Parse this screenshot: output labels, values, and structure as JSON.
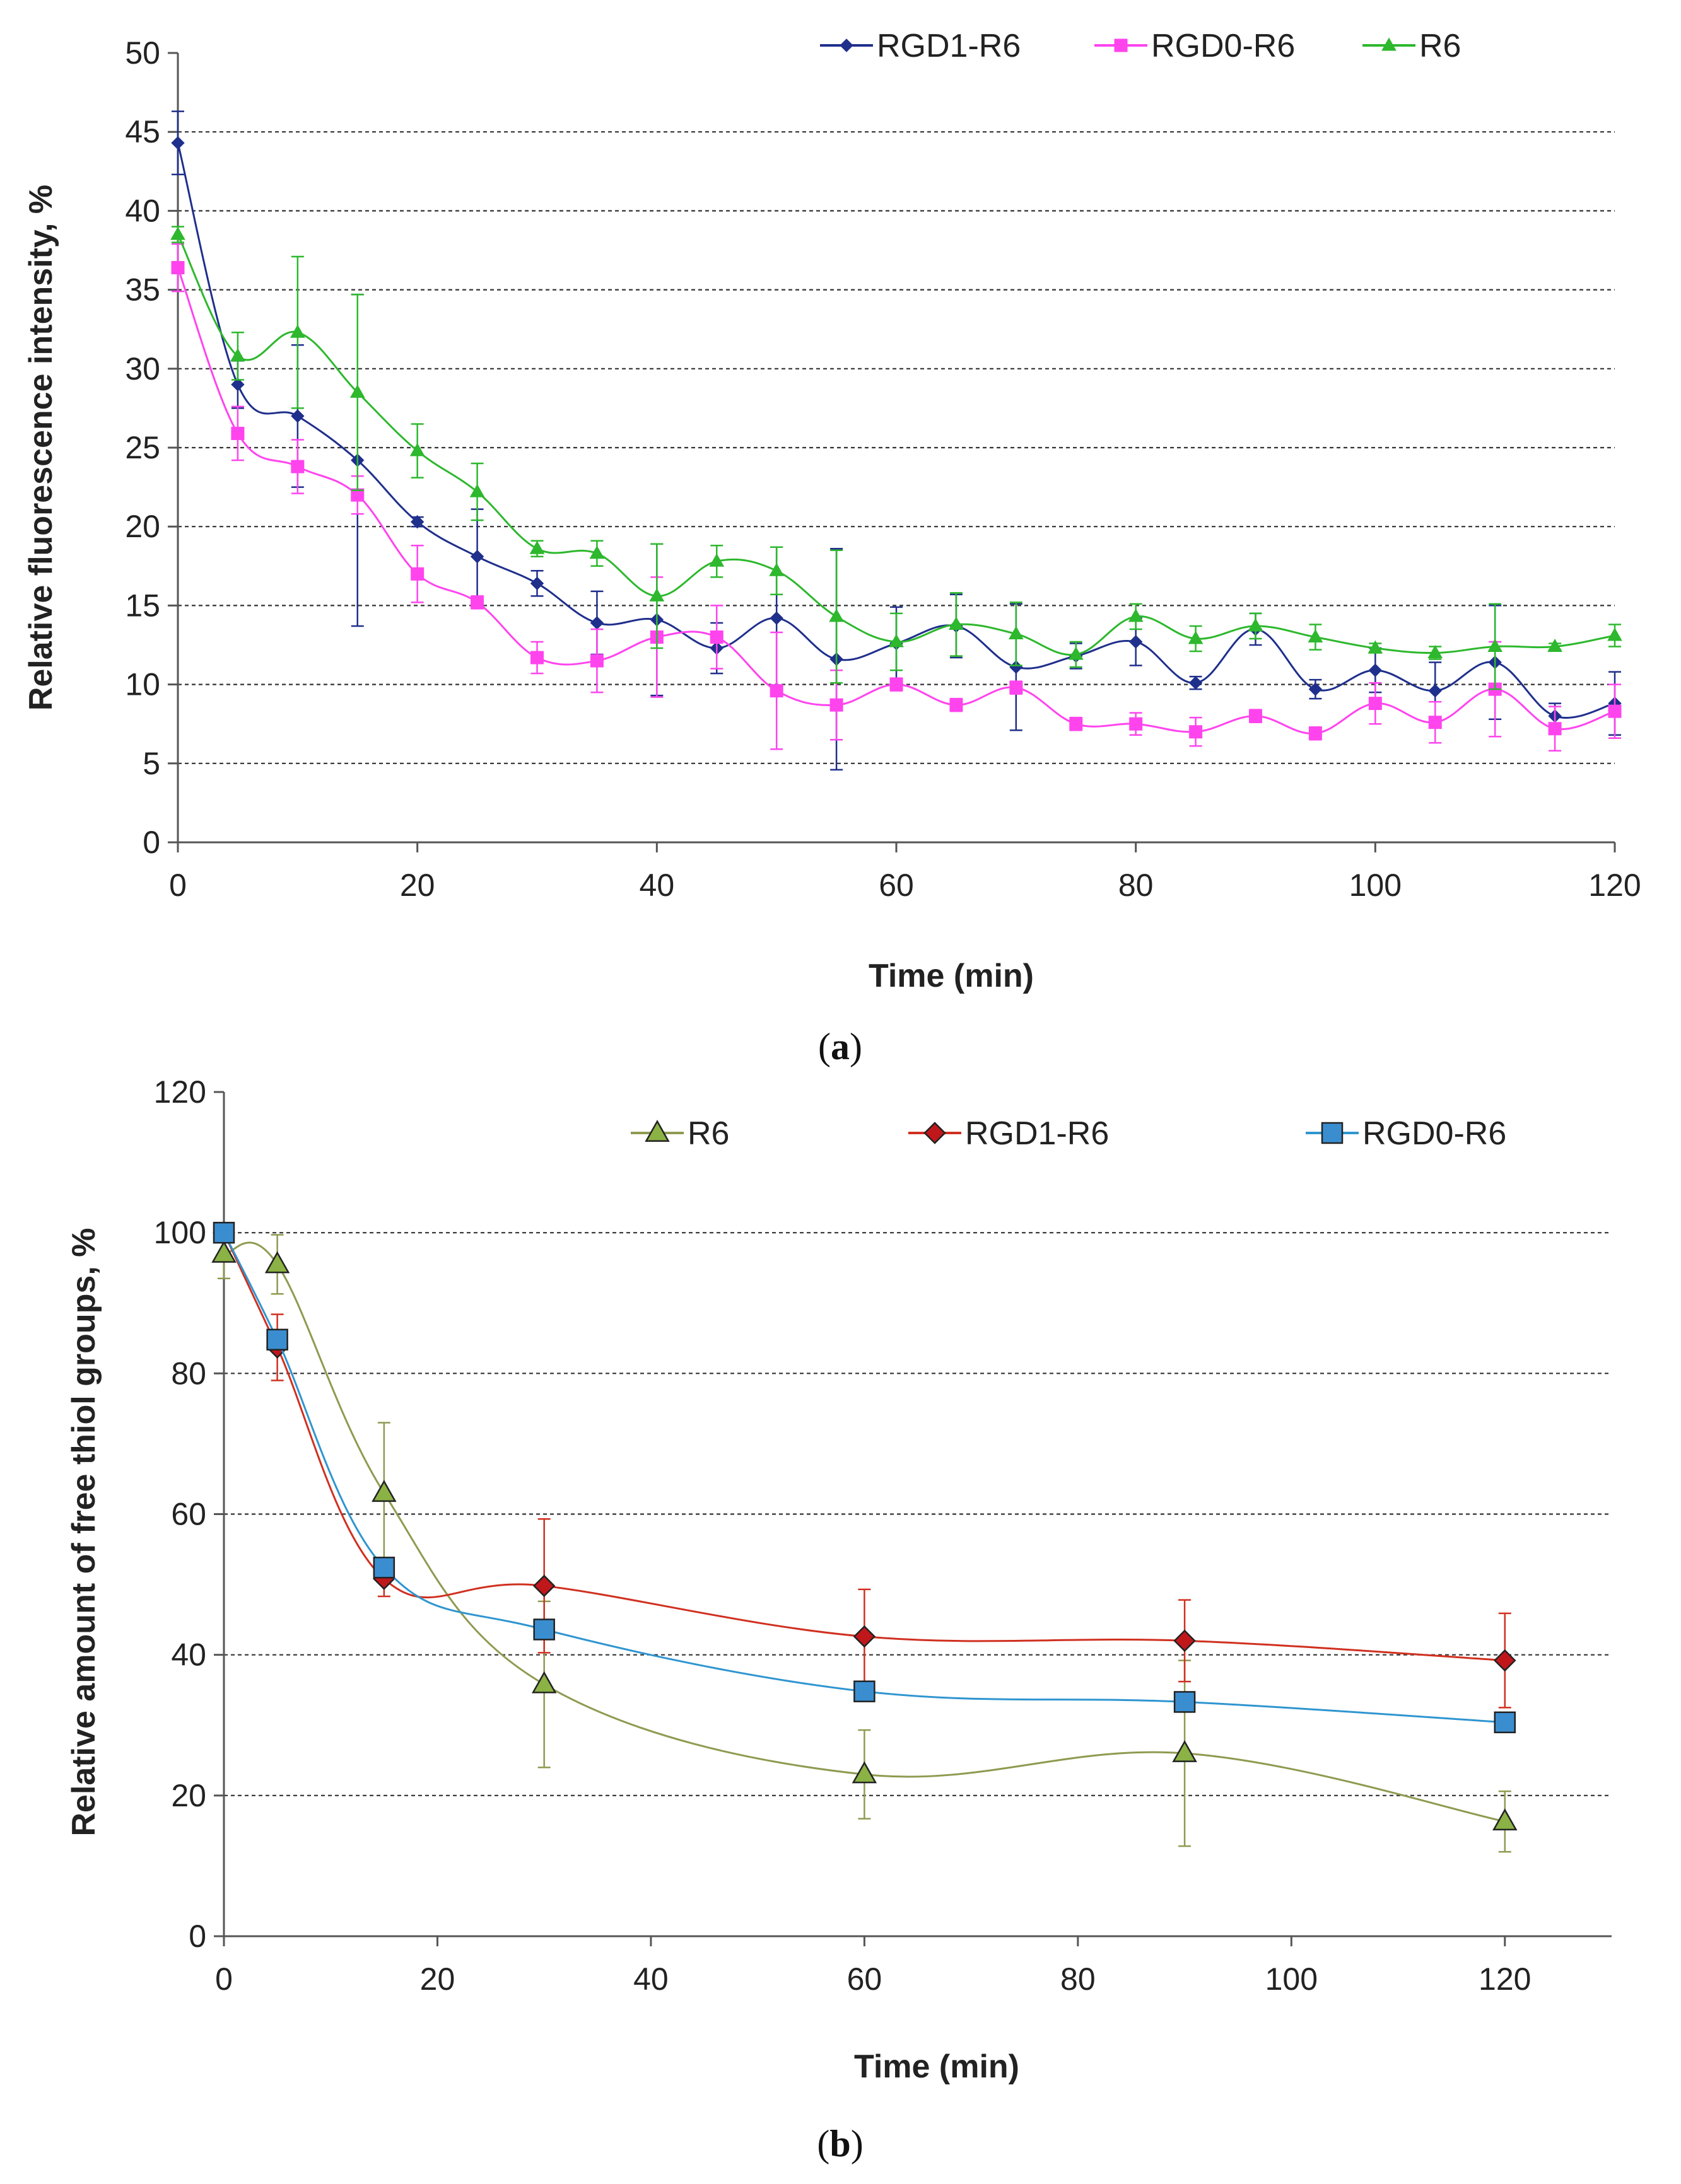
{
  "chart_data": [
    {
      "type": "line",
      "panel_label": {
        "open": "(",
        "letter": "a",
        "close": ")"
      },
      "xlabel": "Time (min)",
      "ylabel": "Relative fluorescence intensity, %",
      "xlim": [
        0,
        120
      ],
      "ylim": [
        0,
        50
      ],
      "xticks": [
        0,
        20,
        40,
        60,
        80,
        100,
        120
      ],
      "yticks": [
        0,
        5,
        10,
        15,
        20,
        25,
        30,
        35,
        40,
        45,
        50
      ],
      "grid": "horizontal dashed",
      "legend_position": "top-right",
      "x": [
        0,
        5,
        10,
        15,
        20,
        25,
        30,
        35,
        40,
        45,
        50,
        55,
        60,
        65,
        70,
        75,
        80,
        85,
        90,
        95,
        100,
        105,
        110,
        115,
        120
      ],
      "series": [
        {
          "name": "RGD1-R6",
          "color": "#1f2f8c",
          "marker": "diamond",
          "values": [
            44.3,
            29.0,
            27.0,
            24.2,
            20.3,
            18.1,
            16.4,
            13.9,
            14.1,
            12.3,
            14.2,
            11.6,
            12.6,
            13.7,
            11.1,
            11.8,
            12.7,
            10.1,
            13.5,
            9.7,
            10.9,
            9.6,
            11.4,
            8.0,
            8.8
          ],
          "errors": [
            2.0,
            1.5,
            4.5,
            10.5,
            0.3,
            3.0,
            0.8,
            2.0,
            4.8,
            1.6,
            4.5,
            7.0,
            2.3,
            2.0,
            4.0,
            0.8,
            1.5,
            0.4,
            1.0,
            0.6,
            1.4,
            1.8,
            3.6,
            0.8,
            2.0
          ]
        },
        {
          "name": "RGD0-R6",
          "color": "#ff44ee",
          "marker": "square",
          "values": [
            36.4,
            25.9,
            23.8,
            22.0,
            17.0,
            15.2,
            11.7,
            11.5,
            13.0,
            13.0,
            9.6,
            8.7,
            10.0,
            8.7,
            9.8,
            7.5,
            7.5,
            7.0,
            8.0,
            6.9,
            8.8,
            7.6,
            9.7,
            7.2,
            8.3
          ],
          "errors": [
            1.5,
            1.7,
            1.7,
            1.2,
            1.8,
            0.4,
            1.0,
            2.0,
            3.8,
            2.0,
            3.7,
            2.2,
            0.4,
            0.4,
            0.4,
            0.4,
            0.7,
            0.9,
            0.4,
            0.4,
            1.3,
            1.3,
            3.0,
            1.4,
            1.7
          ]
        },
        {
          "name": "R6",
          "color": "#2db82d",
          "marker": "triangle",
          "values": [
            38.5,
            30.8,
            32.3,
            28.5,
            24.8,
            22.2,
            18.6,
            18.3,
            15.6,
            17.8,
            17.2,
            14.3,
            12.7,
            13.8,
            13.2,
            11.9,
            14.3,
            12.9,
            13.7,
            13.0,
            12.3,
            12.0,
            12.4,
            12.4,
            13.1
          ]
        }
      ],
      "r6_errors": [
        0.5,
        1.5,
        4.8,
        6.2,
        1.7,
        1.8,
        0.5,
        0.8,
        3.3,
        1.0,
        1.5,
        4.2,
        1.8,
        2.0,
        2.0,
        0.8,
        0.8,
        0.8,
        0.8,
        0.8,
        0.3,
        0.4,
        2.7,
        0.2,
        0.7
      ]
    },
    {
      "type": "line",
      "panel_label": {
        "open": "(",
        "letter": "b",
        "close": ")"
      },
      "xlabel": "Time (min)",
      "ylabel": "Relative amount of free thiol groups, %",
      "xlim": [
        0,
        130
      ],
      "ylim": [
        0,
        120
      ],
      "xticks": [
        0,
        20,
        40,
        60,
        80,
        100,
        120
      ],
      "yticks": [
        0,
        20,
        40,
        60,
        80,
        100,
        120
      ],
      "grid": "horizontal dashed",
      "legend_position": "top",
      "x": [
        0,
        5,
        15,
        30,
        60,
        90,
        120
      ],
      "series": [
        {
          "name": "R6",
          "color": "#8f9a50",
          "fill": "#8bb244",
          "marker": "triangle",
          "values": [
            97.0,
            95.5,
            63.0,
            35.8,
            23.0,
            26.0,
            16.3
          ],
          "errors": [
            3.5,
            4.2,
            10.0,
            11.8,
            6.3,
            13.2,
            4.3
          ]
        },
        {
          "name": "RGD1-R6",
          "color": "#d03020",
          "fill": "#c0171b",
          "marker": "diamond",
          "values": [
            100.0,
            83.7,
            50.8,
            49.8,
            42.6,
            42.0,
            39.2
          ],
          "errors": [
            0,
            4.7,
            2.5,
            9.5,
            6.7,
            5.8,
            6.7
          ]
        },
        {
          "name": "RGD0-R6",
          "color": "#2f95d0",
          "fill": "#3a8ed0",
          "marker": "square",
          "values": [
            100.0,
            84.8,
            52.4,
            43.6,
            34.8,
            33.3,
            30.4
          ],
          "errors": [
            0,
            1.0,
            0.5,
            0.5,
            0.5,
            0.8,
            0.4
          ]
        }
      ]
    }
  ]
}
